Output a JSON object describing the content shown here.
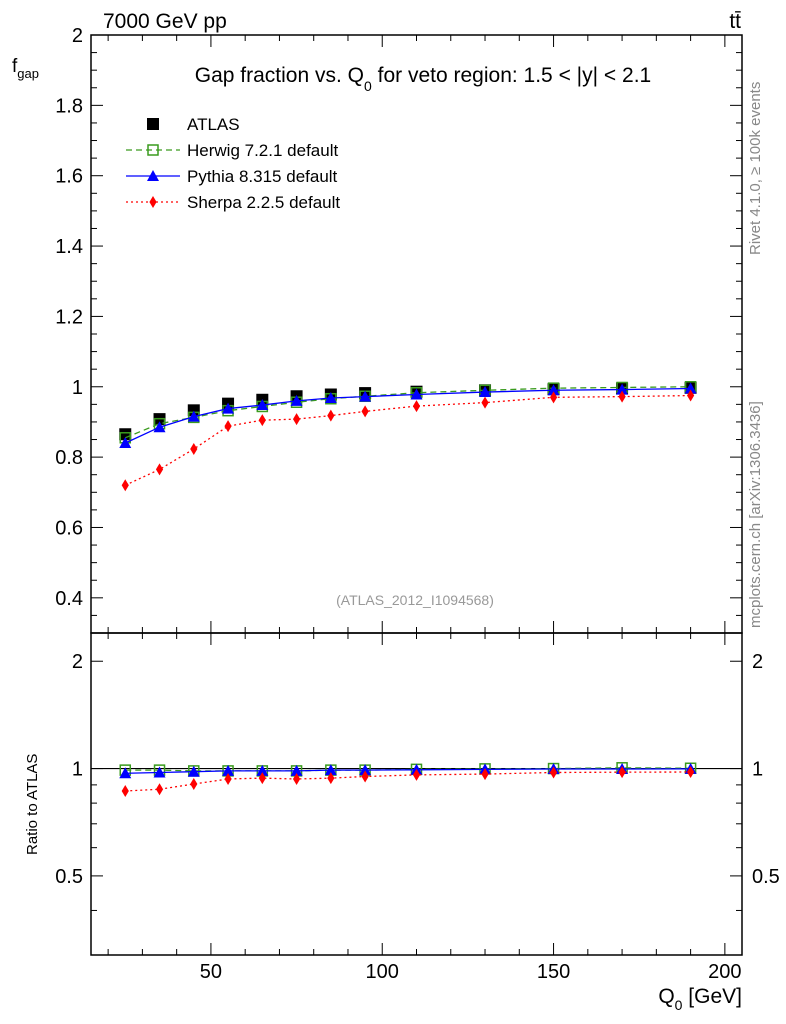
{
  "header": {
    "energy_label": "7000 GeV pp",
    "process_label": "tt̄",
    "main_title_prefix": "Gap fraction vs. Q",
    "main_title_sub": "0",
    "main_title_suffix": " for veto region: 1.5 < |y| < 2.1",
    "analysis_id": "(ATLAS_2012_I1094568)",
    "side_rivet": "Rivet 4.1.0, ≥ 100k events",
    "side_mcplots": "mcplots.cern.ch [arXiv:1306.3436]"
  },
  "colors": {
    "atlas": "#000000",
    "herwig": "#3a9b1e",
    "pythia": "#0000ff",
    "sherpa": "#ff0000"
  },
  "chart_data": [
    {
      "type": "line",
      "panel": "main",
      "ylabel_main": "f",
      "ylabel_sub": "gap",
      "xlim": [
        15,
        205
      ],
      "ylim": [
        0.3,
        2.0
      ],
      "yticks": [
        0.4,
        0.6,
        0.8,
        1.0,
        1.2,
        1.4,
        1.6,
        1.8,
        2.0
      ],
      "ytick_labels": [
        "0.4",
        "0.6",
        "0.8",
        "1",
        "1.2",
        "1.4",
        "1.6",
        "1.8",
        "2"
      ],
      "x": [
        25,
        35,
        45,
        55,
        65,
        75,
        85,
        95,
        110,
        130,
        150,
        170,
        190
      ],
      "series": [
        {
          "key": "atlas",
          "name": "ATLAS",
          "marker": "square",
          "values": [
            0.865,
            0.908,
            0.933,
            0.952,
            0.963,
            0.973,
            0.978,
            0.982,
            0.986,
            0.99,
            0.993,
            0.995,
            0.997
          ]
        },
        {
          "key": "herwig",
          "name": "Herwig 7.2.1 default",
          "marker": "open-square",
          "line": "dashed",
          "values": [
            0.855,
            0.895,
            0.913,
            0.932,
            0.944,
            0.956,
            0.966,
            0.973,
            0.983,
            0.99,
            0.996,
            0.998,
            1.0
          ]
        },
        {
          "key": "pythia",
          "name": "Pythia 8.315 default",
          "marker": "triangle",
          "line": "solid",
          "values": [
            0.84,
            0.885,
            0.915,
            0.938,
            0.948,
            0.96,
            0.968,
            0.972,
            0.978,
            0.985,
            0.99,
            0.992,
            0.995
          ]
        },
        {
          "key": "sherpa",
          "name": "Sherpa 2.2.5 default",
          "marker": "diamond",
          "line": "dotted",
          "values": [
            0.72,
            0.765,
            0.823,
            0.888,
            0.905,
            0.908,
            0.918,
            0.93,
            0.945,
            0.955,
            0.97,
            0.972,
            0.975
          ]
        }
      ]
    },
    {
      "type": "line",
      "panel": "ratio",
      "ylabel": "Ratio to ATLAS",
      "xlabel_main": "Q",
      "xlabel_sub": "0",
      "xlabel_suffix": " [GeV]",
      "xlim": [
        15,
        205
      ],
      "ylim": [
        0.3,
        2.4
      ],
      "xticks": [
        50,
        100,
        150,
        200
      ],
      "xtick_labels": [
        "50",
        "100",
        "150",
        "200"
      ],
      "yticks": [
        0.5,
        1,
        2
      ],
      "ytick_labels": [
        "0.5",
        "1",
        "2"
      ],
      "x": [
        25,
        35,
        45,
        55,
        65,
        75,
        85,
        95,
        110,
        130,
        150,
        170,
        190
      ],
      "series": [
        {
          "key": "herwig",
          "name": "Herwig 7.2.1 default",
          "values": [
            0.99,
            0.99,
            0.985,
            0.985,
            0.985,
            0.985,
            0.99,
            0.99,
            0.995,
            0.998,
            1.0,
            1.005,
            1.002
          ]
        },
        {
          "key": "pythia",
          "name": "Pythia 8.315 default",
          "values": [
            0.97,
            0.975,
            0.98,
            0.985,
            0.985,
            0.985,
            0.99,
            0.99,
            0.992,
            0.995,
            0.997,
            0.997,
            0.998
          ]
        },
        {
          "key": "sherpa",
          "name": "Sherpa 2.2.5 default",
          "values": [
            0.865,
            0.875,
            0.905,
            0.935,
            0.94,
            0.935,
            0.94,
            0.95,
            0.96,
            0.965,
            0.975,
            0.977,
            0.978
          ]
        }
      ]
    }
  ]
}
